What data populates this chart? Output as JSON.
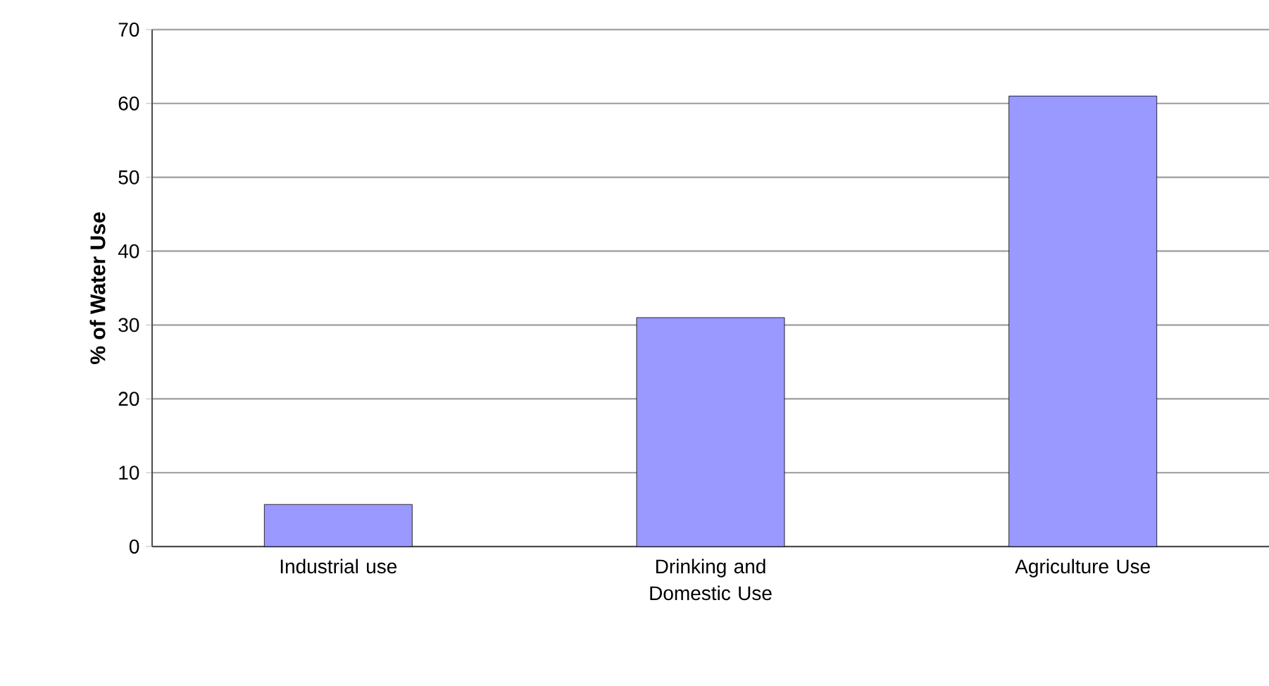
{
  "chart_data": {
    "type": "bar",
    "ylabel": "% of Water Use",
    "categories": [
      "Industrial use",
      "Drinking and Domestic Use",
      "Agriculture Use"
    ],
    "values": [
      5.7,
      31,
      61
    ],
    "color": "#9999ff",
    "ylim": [
      0,
      70
    ],
    "yticks": [
      0,
      10,
      20,
      30,
      40,
      50,
      60,
      70
    ],
    "grid": "y"
  }
}
